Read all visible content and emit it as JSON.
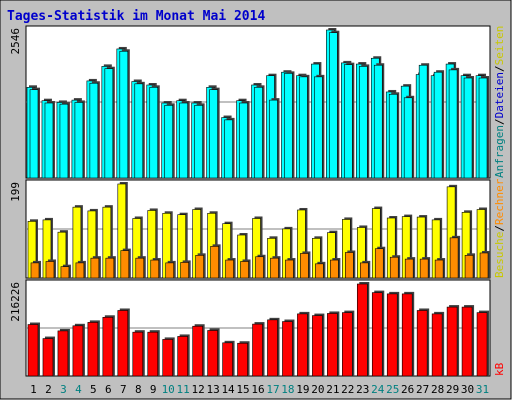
{
  "title": "Tages-Statistik im Monat Mai 2014",
  "colors": {
    "frame_bg": "#c0c0c0",
    "panel_bg": "#ffffff",
    "border": "#000000",
    "title_text": "#0000cc",
    "grid": "#808080",
    "anfragen": "#00ffff",
    "dateien": "#1e90ff",
    "seiten": "#ffff00",
    "besuche": "#ff8c00",
    "rechner": "#ff0000",
    "kb": "#ff0000",
    "weekend_text": "#008080",
    "day_text": "#000000"
  },
  "chart_data": [
    {
      "type": "bar",
      "ymax_label": "2546",
      "ylim": [
        0,
        2546
      ],
      "right_labels": [
        {
          "text": "Anfragen",
          "color": "#008080"
        },
        {
          "text": "/",
          "color": "#000000"
        },
        {
          "text": "Dateien",
          "color": "#0000cc"
        },
        {
          "text": "/",
          "color": "#000000"
        },
        {
          "text": "Seiten",
          "color": "#c8c800"
        }
      ],
      "series": [
        {
          "name": "Anfragen",
          "values": [
            1560,
            1330,
            1300,
            1340,
            1670,
            1920,
            2220,
            1660,
            1600,
            1290,
            1330,
            1290,
            1560,
            1040,
            1330,
            1600,
            1760,
            1820,
            1760,
            1960,
            2546,
            1980,
            1960,
            2060,
            1480,
            1580,
            1780,
            1760,
            1960,
            1760,
            1760
          ]
        },
        {
          "name": "Dateien",
          "values": [
            1520,
            1290,
            1270,
            1300,
            1630,
            1880,
            2180,
            1620,
            1560,
            1250,
            1290,
            1250,
            1520,
            1000,
            1290,
            1560,
            1340,
            1800,
            1740,
            1740,
            2500,
            1950,
            1920,
            1940,
            1440,
            1380,
            1940,
            1820,
            1860,
            1720,
            1720
          ]
        }
      ]
    },
    {
      "type": "bar",
      "ymax_label": "199",
      "ylim": [
        0,
        199
      ],
      "right_labels": [
        {
          "text": "Besuche",
          "color": "#c8c800"
        },
        {
          "text": "/",
          "color": "#000000"
        },
        {
          "text": "Rechner",
          "color": "#ff8c00"
        }
      ],
      "series": [
        {
          "name": "Besuche",
          "values": [
            120,
            123,
            97,
            150,
            142,
            150,
            199,
            126,
            143,
            137,
            134,
            145,
            137,
            115,
            91,
            126,
            84,
            104,
            144,
            84,
            96,
            124,
            107,
            147,
            127,
            130,
            129,
            123,
            193,
            139,
            145
          ]
        },
        {
          "name": "Rechner",
          "values": [
            32,
            35,
            24,
            32,
            42,
            42,
            58,
            42,
            38,
            32,
            33,
            48,
            67,
            38,
            35,
            45,
            42,
            38,
            52,
            30,
            38,
            54,
            32,
            62,
            44,
            40,
            40,
            38,
            85,
            48,
            53
          ]
        }
      ]
    },
    {
      "type": "bar",
      "ymax_label": "216226",
      "ylim": [
        0,
        216226
      ],
      "right_labels": [
        {
          "text": "kB",
          "color": "#ff0000"
        }
      ],
      "series": [
        {
          "name": "kB",
          "values": [
            121000,
            88000,
            106000,
            118000,
            126000,
            138000,
            154000,
            103000,
            103000,
            86000,
            93000,
            117000,
            107000,
            78000,
            77000,
            122000,
            132000,
            128000,
            146000,
            142000,
            147000,
            149000,
            216226,
            196000,
            193000,
            193000,
            154000,
            146000,
            162000,
            162000,
            149000
          ]
        }
      ]
    }
  ],
  "days": [
    {
      "label": "1",
      "weekend": false
    },
    {
      "label": "2",
      "weekend": false
    },
    {
      "label": "3",
      "weekend": true
    },
    {
      "label": "4",
      "weekend": true
    },
    {
      "label": "5",
      "weekend": false
    },
    {
      "label": "6",
      "weekend": false
    },
    {
      "label": "7",
      "weekend": false
    },
    {
      "label": "8",
      "weekend": false
    },
    {
      "label": "9",
      "weekend": false
    },
    {
      "label": "10",
      "weekend": true
    },
    {
      "label": "11",
      "weekend": true
    },
    {
      "label": "12",
      "weekend": false
    },
    {
      "label": "13",
      "weekend": false
    },
    {
      "label": "14",
      "weekend": false
    },
    {
      "label": "15",
      "weekend": false
    },
    {
      "label": "16",
      "weekend": false
    },
    {
      "label": "17",
      "weekend": true
    },
    {
      "label": "18",
      "weekend": true
    },
    {
      "label": "19",
      "weekend": false
    },
    {
      "label": "20",
      "weekend": false
    },
    {
      "label": "21",
      "weekend": false
    },
    {
      "label": "22",
      "weekend": false
    },
    {
      "label": "23",
      "weekend": false
    },
    {
      "label": "24",
      "weekend": true
    },
    {
      "label": "25",
      "weekend": true
    },
    {
      "label": "26",
      "weekend": false
    },
    {
      "label": "27",
      "weekend": false
    },
    {
      "label": "28",
      "weekend": false
    },
    {
      "label": "29",
      "weekend": false
    },
    {
      "label": "30",
      "weekend": false
    },
    {
      "label": "31",
      "weekend": true
    }
  ]
}
